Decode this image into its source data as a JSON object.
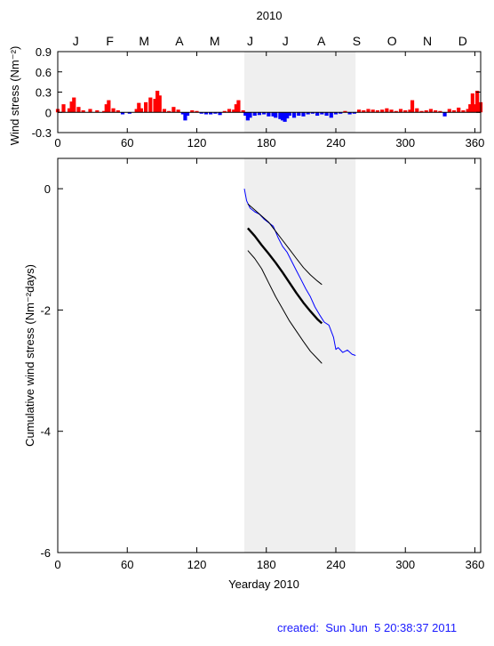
{
  "year_title": "2010",
  "months": [
    "J",
    "F",
    "M",
    "A",
    "M",
    "J",
    "J",
    "A",
    "S",
    "O",
    "N",
    "D"
  ],
  "created_text": "created:  Sun Jun  5 20:38:37 2011",
  "colors": {
    "positive_fill": "#ff0000",
    "negative_fill": "#0000ff",
    "shade": "#efefef",
    "mean_line": "#000000",
    "bound_line": "#000000",
    "obs_line": "#0000ff"
  },
  "chart_data": [
    {
      "type": "area",
      "title": "2010",
      "xlabel": "",
      "ylabel": "Wind stress (Nm⁻²)",
      "xlim": [
        0,
        365
      ],
      "ylim": [
        -0.3,
        0.9
      ],
      "x_ticks": [
        "0",
        "60",
        "120",
        "180",
        "240",
        "300",
        "360"
      ],
      "y_ticks": [
        "-0.3",
        "0",
        "0.3",
        "0.6",
        "0.9"
      ],
      "highlight_span": [
        161,
        257
      ],
      "series": [
        {
          "x": [
            0,
            5,
            10,
            12,
            14,
            18,
            22,
            28,
            34,
            40,
            42,
            44,
            48,
            52,
            56,
            62,
            68,
            70,
            72,
            76,
            80,
            84,
            86,
            88,
            92,
            96,
            100,
            104,
            108,
            110,
            112,
            116,
            120,
            124,
            128,
            132,
            136,
            140,
            144,
            148,
            152,
            154,
            156,
            160,
            162,
            164,
            166,
            170,
            174,
            178,
            182,
            186,
            188,
            192,
            194,
            196,
            198,
            200,
            204,
            208,
            212,
            216,
            220,
            224,
            228,
            232,
            236,
            240,
            244,
            248,
            252,
            256,
            260,
            264,
            268,
            272,
            276,
            280,
            284,
            288,
            292,
            296,
            300,
            304,
            306,
            310,
            314,
            318,
            322,
            326,
            330,
            334,
            338,
            342,
            346,
            350,
            354,
            356,
            358,
            360,
            362,
            365
          ],
          "y": [
            0.05,
            0.12,
            0.06,
            0.16,
            0.22,
            0.08,
            0.03,
            0.05,
            0.03,
            0.02,
            0.12,
            0.18,
            0.06,
            0.03,
            -0.03,
            -0.02,
            0.05,
            0.14,
            0.06,
            0.15,
            0.22,
            0.2,
            0.32,
            0.25,
            0.05,
            0.02,
            0.08,
            0.04,
            -0.03,
            -0.12,
            -0.05,
            0.03,
            0.02,
            -0.02,
            -0.03,
            -0.03,
            -0.02,
            -0.04,
            0.02,
            0.05,
            0.04,
            0.12,
            0.18,
            0.03,
            -0.05,
            -0.12,
            -0.08,
            -0.05,
            -0.04,
            -0.03,
            -0.06,
            -0.06,
            -0.08,
            -0.1,
            -0.12,
            -0.14,
            -0.09,
            -0.05,
            -0.08,
            -0.05,
            -0.06,
            -0.03,
            -0.02,
            -0.05,
            -0.03,
            -0.05,
            -0.08,
            -0.03,
            -0.02,
            0.02,
            -0.03,
            -0.02,
            0.04,
            0.03,
            0.05,
            0.04,
            0.03,
            0.04,
            0.06,
            0.04,
            0.02,
            0.05,
            0.03,
            0.04,
            0.18,
            0.06,
            0.02,
            0.03,
            0.05,
            0.03,
            0.02,
            -0.06,
            0.05,
            0.03,
            0.07,
            0.03,
            0.05,
            0.12,
            0.28,
            0.12,
            0.32,
            0.15
          ]
        }
      ]
    },
    {
      "type": "line",
      "xlabel": "Yearday 2010",
      "ylabel": "Cumulative wind stress (Nm⁻²days)",
      "xlim": [
        0,
        365
      ],
      "ylim": [
        -6,
        0.5
      ],
      "x_ticks": [
        "0",
        "60",
        "120",
        "180",
        "240",
        "300",
        "360"
      ],
      "y_ticks": [
        "0",
        "-2",
        "-4",
        "-6"
      ],
      "highlight_span": [
        161,
        257
      ],
      "series": [
        {
          "x": [
            161,
            163,
            166,
            170,
            174,
            178,
            182,
            186,
            190,
            194,
            198,
            202,
            206,
            210,
            214,
            218,
            222,
            226,
            230,
            234,
            238,
            240,
            242,
            246,
            250,
            254,
            257
          ],
          "y": [
            0,
            -0.2,
            -0.32,
            -0.38,
            -0.42,
            -0.5,
            -0.56,
            -0.62,
            -0.8,
            -0.95,
            -1.05,
            -1.2,
            -1.35,
            -1.5,
            -1.65,
            -1.78,
            -1.95,
            -2.08,
            -2.2,
            -2.25,
            -2.45,
            -2.65,
            -2.62,
            -2.7,
            -2.66,
            -2.73,
            -2.75
          ]
        },
        {
          "x": [
            164,
            170,
            176,
            182,
            188,
            194,
            200,
            206,
            212,
            218,
            224,
            228
          ],
          "y": [
            -0.65,
            -0.78,
            -0.93,
            -1.07,
            -1.22,
            -1.38,
            -1.55,
            -1.72,
            -1.88,
            -2.02,
            -2.15,
            -2.22
          ]
        },
        {
          "x": [
            164,
            170,
            176,
            182,
            188,
            194,
            200,
            206,
            212,
            218,
            224,
            228
          ],
          "y": [
            -0.25,
            -0.35,
            -0.45,
            -0.55,
            -0.7,
            -0.85,
            -1.0,
            -1.15,
            -1.3,
            -1.42,
            -1.52,
            -1.58
          ]
        },
        {
          "x": [
            164,
            170,
            176,
            182,
            188,
            194,
            200,
            206,
            212,
            218,
            224,
            228
          ],
          "y": [
            -1.02,
            -1.15,
            -1.32,
            -1.55,
            -1.78,
            -1.98,
            -2.18,
            -2.35,
            -2.52,
            -2.68,
            -2.8,
            -2.88
          ]
        }
      ]
    }
  ]
}
